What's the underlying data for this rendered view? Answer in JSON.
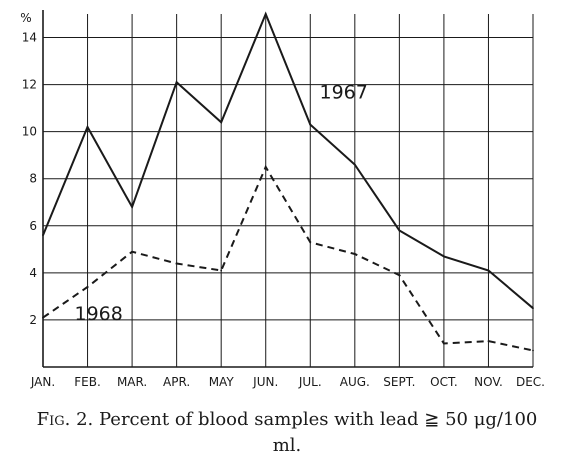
{
  "chart_data": {
    "type": "line",
    "ylabel": "%",
    "ylim": [
      0,
      15
    ],
    "yticks": [
      2,
      4,
      6,
      8,
      10,
      12,
      14
    ],
    "categories": [
      "JAN.",
      "FEB.",
      "MAR.",
      "APR.",
      "MAY",
      "JUN.",
      "JUL.",
      "AUG.",
      "SEPT.",
      "OCT.",
      "NOV.",
      "DEC."
    ],
    "grid": true,
    "series": [
      {
        "name": "1967",
        "style": "solid",
        "values": [
          5.6,
          10.2,
          6.8,
          12.1,
          10.4,
          15.0,
          10.3,
          8.6,
          5.8,
          4.7,
          4.1,
          2.5
        ]
      },
      {
        "name": "1968",
        "style": "dashed",
        "values": [
          2.1,
          3.4,
          4.9,
          4.4,
          4.1,
          8.5,
          5.3,
          4.8,
          3.9,
          1.0,
          1.1,
          0.7
        ]
      }
    ]
  },
  "caption": {
    "fig_label": "Fig. 2.",
    "text": "Percent of blood samples with lead ≧ 50 μg/100 ml."
  },
  "colors": {
    "ink": "#1a1a1a",
    "paper": "#ffffff"
  }
}
